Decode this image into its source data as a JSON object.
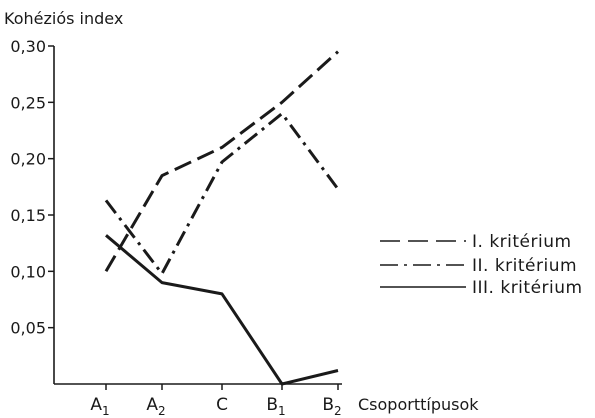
{
  "chart_data": {
    "type": "line",
    "ylabel": "Kohéziós index",
    "xlabel": "Csoporttípusok",
    "categories": [
      {
        "main": "A",
        "sub": "1"
      },
      {
        "main": "A",
        "sub": "2"
      },
      {
        "main": "C",
        "sub": ""
      },
      {
        "main": "B",
        "sub": "1"
      },
      {
        "main": "B",
        "sub": "2"
      }
    ],
    "ylim": [
      0,
      0.3
    ],
    "yticks": [
      "0,30",
      "0,25",
      "0,20",
      "0,15",
      "0,10",
      "0,05"
    ],
    "ytick_values": [
      0.3,
      0.25,
      0.2,
      0.15,
      0.1,
      0.05
    ],
    "series": [
      {
        "name": "I.   kritérium",
        "style": "dashed",
        "values": [
          0.1,
          0.185,
          0.21,
          0.25,
          0.295
        ]
      },
      {
        "name": "II.  kritérium",
        "style": "dashdot",
        "values": [
          0.163,
          0.098,
          0.197,
          0.24,
          0.173
        ]
      },
      {
        "name": "III. kritérium",
        "style": "solid",
        "values": [
          0.132,
          0.09,
          0.08,
          0.0,
          0.012
        ]
      }
    ],
    "legend_position": "right",
    "grid": false,
    "line_color": "#1a1a1a"
  }
}
